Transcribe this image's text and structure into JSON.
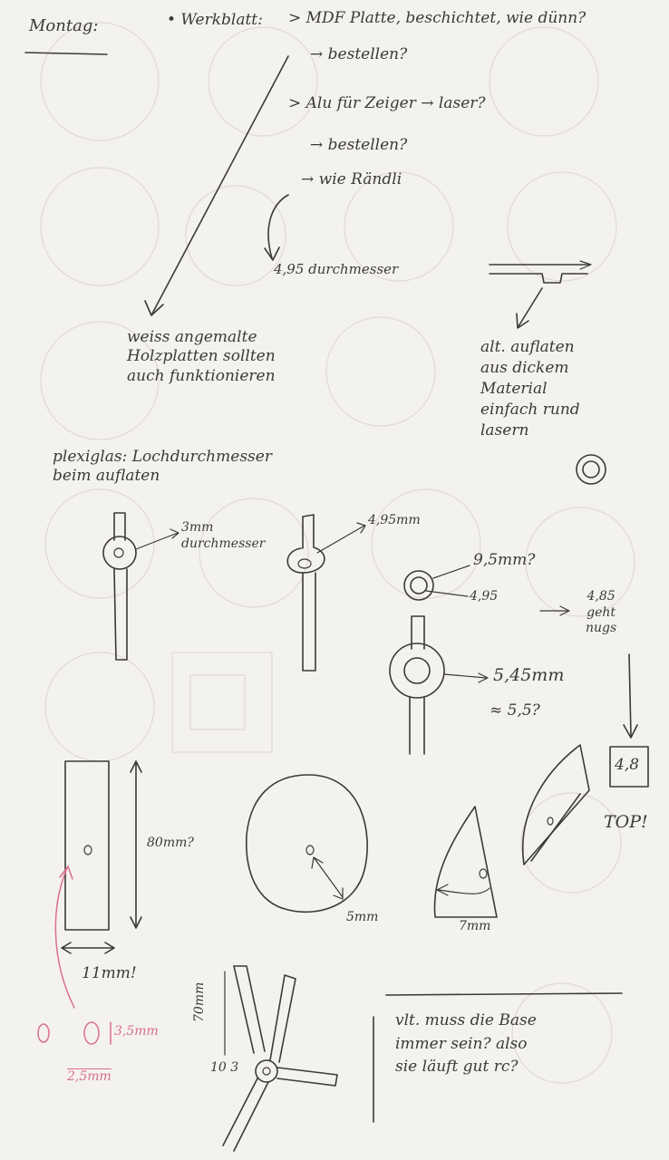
{
  "notes": {
    "heading": "Montag:",
    "werkblatt": "• Werkblatt:",
    "mdf_platte": "> MDF Platte, beschichtet, wie dünn?",
    "bestellen_1": "→ bestellen?",
    "alu_zeiger": "> Alu für Zeiger → laser?",
    "bestellen_2": "→ bestellen?",
    "wie_raendli": "→ wie Rändli",
    "durchmesser_495": "4,95 durchmesser",
    "weiss_note": "weiss angemalte\nHolzplatten sollten\nauch funktionieren",
    "alt_note": "alt. auflaten\naus dickem\nMaterial\neinfach rund\nlasern",
    "plexiglas": "plexiglas: Lochdurchmesser\nbeim auflaten",
    "three_mm": "3mm\ndurchmesser",
    "four_95_mm": "4,95mm",
    "nine_5_mm": "9,5mm?",
    "four_95": "4,95",
    "four_85": "4,85\ngeht\nnugs",
    "five_45": "5,45mm",
    "approx_55": "≈ 5,5?",
    "box_value": "4,8",
    "top": "TOP!",
    "eighty_mm": "80mm?",
    "five_mm": "5mm",
    "seven_mm": "7mm",
    "eleven_mm": "11mm!",
    "seventy_mm": "70mm",
    "ten_3": "10 3",
    "three_5mm": "3,5mm",
    "two_5mm": "2,5mm",
    "bottom_question": "vlt. muss die Base\nimmer sein? also\nsie läuft gut rc?"
  },
  "colors": {
    "paper": "#f4f2ee",
    "ink": "#3b3a38",
    "pink": "#d9708a"
  }
}
